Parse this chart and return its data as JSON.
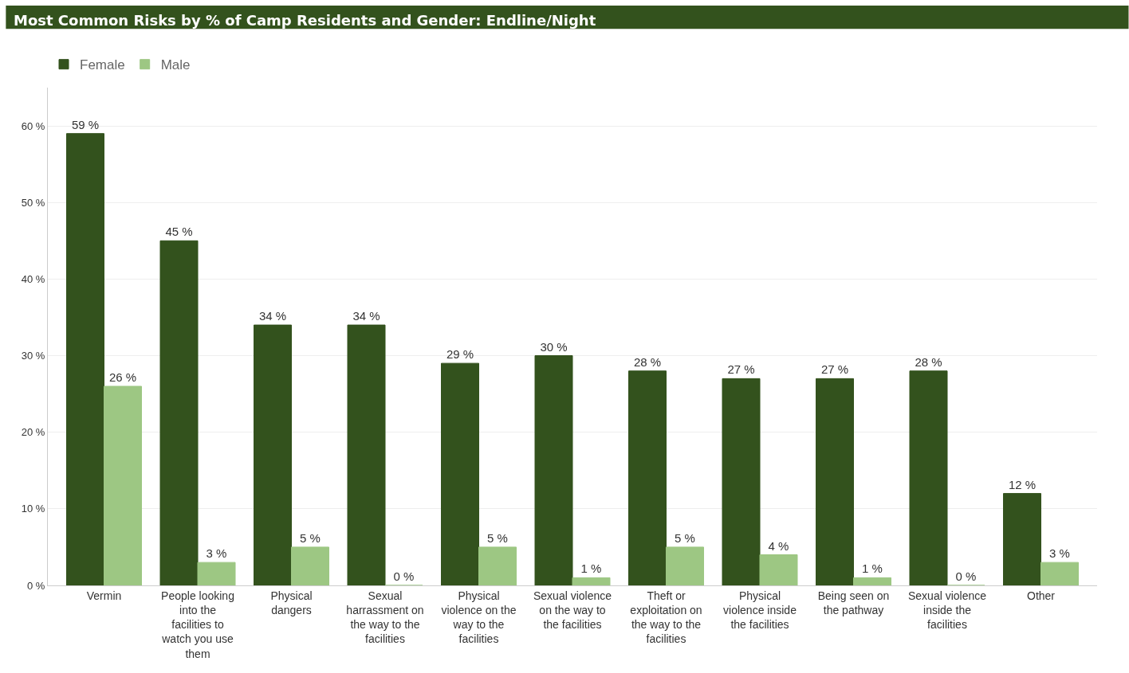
{
  "chart_data": {
    "type": "bar",
    "title": "Most Common Risks by % of Camp Residents and Gender: Endline/Night",
    "categories": [
      "Vermin",
      "People looking into the facilities to watch you use them",
      "Physical dangers",
      "Sexual harrassment on the way to the facilities",
      "Physical violence on the way to the facilities",
      "Sexual violence on the way to the facilities",
      "Theft or exploitation on the way to the facilities",
      "Physical violence inside the facilities",
      "Being seen on the pathway",
      "Sexual violence inside the facilities",
      "Other"
    ],
    "series": [
      {
        "name": "Female",
        "color": "#33521d",
        "values": [
          59,
          45,
          34,
          34,
          29,
          30,
          28,
          27,
          27,
          28,
          12
        ],
        "value_labels": [
          "59 %",
          "45 %",
          "34 %",
          "34 %",
          "29 %",
          "30 %",
          "28 %",
          "27 %",
          "27 %",
          "28 %",
          "12 %"
        ]
      },
      {
        "name": "Male",
        "color": "#9dc783",
        "values": [
          26,
          3,
          5,
          0,
          5,
          1,
          5,
          4,
          1,
          0,
          3
        ],
        "value_labels": [
          "26 %",
          "3 %",
          "5 %",
          "0 %",
          "5 %",
          "1 %",
          "5 %",
          "4 %",
          "1 %",
          "0 %",
          "3 %"
        ]
      }
    ],
    "ylim": [
      0,
      65
    ],
    "yticks": [
      {
        "value": 0,
        "label": "0 %"
      },
      {
        "value": 10,
        "label": "10 %"
      },
      {
        "value": 20,
        "label": "20 %"
      },
      {
        "value": 30,
        "label": "30 %"
      },
      {
        "value": 40,
        "label": "40 %"
      },
      {
        "value": 50,
        "label": "50 %"
      },
      {
        "value": 60,
        "label": "60 %"
      }
    ],
    "grid": "y",
    "legend": "top left"
  }
}
